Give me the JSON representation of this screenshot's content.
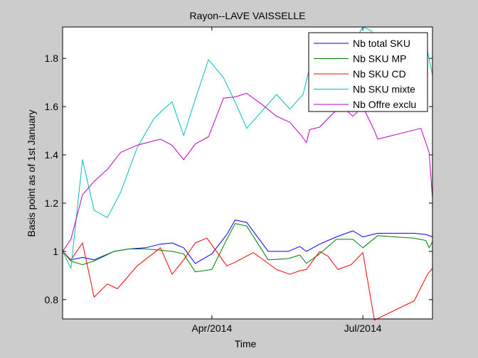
{
  "chart_data": {
    "type": "line",
    "title": "Rayon--LAVE VAISSELLE",
    "xlabel": "Time",
    "ylabel": "Basis point as of 1st January",
    "x_range": [
      "2014-01-01",
      "2014-08-12"
    ],
    "ylim": [
      0.72,
      1.93
    ],
    "y_ticks": [
      0.8,
      1,
      1.2,
      1.4,
      1.6,
      1.8
    ],
    "y_tick_labels": [
      "0.8",
      "1",
      "1.2",
      "1.4",
      "1.6",
      "1.8"
    ],
    "x_ticks": [
      "2014-04-01",
      "2014-07-01"
    ],
    "x_tick_labels": [
      "Apr/2014",
      "Jul/2014"
    ],
    "grid": false,
    "legend_placement": "top-right",
    "series": [
      {
        "name": "Nb total SKU",
        "color": "#0000ff",
        "points": [
          [
            "2014-01-01",
            1.0
          ],
          [
            "2014-01-06",
            0.965
          ],
          [
            "2014-01-13",
            0.975
          ],
          [
            "2014-01-20",
            0.965
          ],
          [
            "2014-02-01",
            1.0
          ],
          [
            "2014-02-10",
            1.01
          ],
          [
            "2014-02-20",
            1.015
          ],
          [
            "2014-03-01",
            1.03
          ],
          [
            "2014-03-08",
            1.035
          ],
          [
            "2014-03-15",
            1.015
          ],
          [
            "2014-03-22",
            0.95
          ],
          [
            "2014-04-01",
            0.99
          ],
          [
            "2014-04-10",
            1.07
          ],
          [
            "2014-04-15",
            1.13
          ],
          [
            "2014-04-22",
            1.12
          ],
          [
            "2014-05-05",
            1.0
          ],
          [
            "2014-05-17",
            1.0
          ],
          [
            "2014-05-24",
            1.02
          ],
          [
            "2014-05-28",
            1.0
          ],
          [
            "2014-06-05",
            1.03
          ],
          [
            "2014-06-15",
            1.06
          ],
          [
            "2014-06-25",
            1.085
          ],
          [
            "2014-07-01",
            1.06
          ],
          [
            "2014-07-10",
            1.075
          ],
          [
            "2014-07-20",
            1.075
          ],
          [
            "2014-08-01",
            1.075
          ],
          [
            "2014-08-08",
            1.07
          ],
          [
            "2014-08-12",
            1.06
          ]
        ]
      },
      {
        "name": "Nb SKU MP",
        "color": "#008000",
        "points": [
          [
            "2014-01-01",
            1.0
          ],
          [
            "2014-01-06",
            0.96
          ],
          [
            "2014-01-13",
            0.945
          ],
          [
            "2014-01-20",
            0.96
          ],
          [
            "2014-02-01",
            1.0
          ],
          [
            "2014-02-10",
            1.01
          ],
          [
            "2014-02-20",
            1.01
          ],
          [
            "2014-03-01",
            1.005
          ],
          [
            "2014-03-08",
            1.0
          ],
          [
            "2014-03-15",
            0.99
          ],
          [
            "2014-03-22",
            0.915
          ],
          [
            "2014-04-01",
            0.925
          ],
          [
            "2014-04-10",
            1.05
          ],
          [
            "2014-04-15",
            1.115
          ],
          [
            "2014-04-22",
            1.105
          ],
          [
            "2014-05-05",
            0.965
          ],
          [
            "2014-05-17",
            0.97
          ],
          [
            "2014-05-24",
            0.985
          ],
          [
            "2014-05-28",
            0.95
          ],
          [
            "2014-06-05",
            0.99
          ],
          [
            "2014-06-15",
            1.05
          ],
          [
            "2014-06-25",
            1.05
          ],
          [
            "2014-07-01",
            1.015
          ],
          [
            "2014-07-10",
            1.065
          ],
          [
            "2014-07-20",
            1.06
          ],
          [
            "2014-08-01",
            1.055
          ],
          [
            "2014-08-08",
            1.045
          ],
          [
            "2014-08-10",
            1.015
          ],
          [
            "2014-08-12",
            1.04
          ]
        ]
      },
      {
        "name": "Nb SKU CD",
        "color": "#ff0000",
        "points": [
          [
            "2014-01-01",
            1.0
          ],
          [
            "2014-01-06",
            0.965
          ],
          [
            "2014-01-13",
            1.035
          ],
          [
            "2014-01-20",
            0.81
          ],
          [
            "2014-01-28",
            0.865
          ],
          [
            "2014-02-03",
            0.845
          ],
          [
            "2014-02-15",
            0.94
          ],
          [
            "2014-03-01",
            1.015
          ],
          [
            "2014-03-08",
            0.905
          ],
          [
            "2014-03-15",
            0.965
          ],
          [
            "2014-03-22",
            1.035
          ],
          [
            "2014-03-29",
            1.055
          ],
          [
            "2014-04-10",
            0.94
          ],
          [
            "2014-04-15",
            0.955
          ],
          [
            "2014-04-26",
            0.995
          ],
          [
            "2014-05-10",
            0.925
          ],
          [
            "2014-05-18",
            0.905
          ],
          [
            "2014-05-24",
            0.92
          ],
          [
            "2014-05-28",
            0.925
          ],
          [
            "2014-06-05",
            1.0
          ],
          [
            "2014-06-10",
            0.98
          ],
          [
            "2014-06-16",
            0.925
          ],
          [
            "2014-06-24",
            0.945
          ],
          [
            "2014-07-01",
            0.995
          ],
          [
            "2014-07-08",
            0.715
          ],
          [
            "2014-08-01",
            0.795
          ],
          [
            "2014-08-09",
            0.905
          ],
          [
            "2014-08-12",
            0.93
          ]
        ]
      },
      {
        "name": "Nb SKU mixte",
        "color": "#00bfbf",
        "points": [
          [
            "2014-01-01",
            1.0
          ],
          [
            "2014-01-06",
            0.93
          ],
          [
            "2014-01-13",
            1.38
          ],
          [
            "2014-01-20",
            1.17
          ],
          [
            "2014-01-28",
            1.14
          ],
          [
            "2014-02-05",
            1.245
          ],
          [
            "2014-02-15",
            1.43
          ],
          [
            "2014-02-25",
            1.55
          ],
          [
            "2014-03-03",
            1.59
          ],
          [
            "2014-03-08",
            1.62
          ],
          [
            "2014-03-15",
            1.48
          ],
          [
            "2014-03-22",
            1.63
          ],
          [
            "2014-03-30",
            1.795
          ],
          [
            "2014-04-08",
            1.72
          ],
          [
            "2014-04-15",
            1.62
          ],
          [
            "2014-04-22",
            1.51
          ],
          [
            "2014-05-01",
            1.58
          ],
          [
            "2014-05-10",
            1.65
          ],
          [
            "2014-05-18",
            1.59
          ],
          [
            "2014-05-26",
            1.65
          ],
          [
            "2014-06-01",
            1.82
          ],
          [
            "2014-06-08",
            1.9
          ],
          [
            "2014-06-14",
            1.7
          ],
          [
            "2014-06-20",
            1.8
          ],
          [
            "2014-07-01",
            1.93
          ],
          [
            "2014-07-06",
            1.915
          ],
          [
            "2014-07-12",
            1.85
          ],
          [
            "2014-08-09",
            1.83
          ],
          [
            "2014-08-12",
            1.73
          ]
        ]
      },
      {
        "name": "Nb Offre exclu",
        "color": "#bf00bf",
        "points": [
          [
            "2014-01-01",
            1.0
          ],
          [
            "2014-01-06",
            1.05
          ],
          [
            "2014-01-13",
            1.235
          ],
          [
            "2014-01-20",
            1.29
          ],
          [
            "2014-01-28",
            1.34
          ],
          [
            "2014-02-05",
            1.41
          ],
          [
            "2014-02-15",
            1.44
          ],
          [
            "2014-03-01",
            1.465
          ],
          [
            "2014-03-08",
            1.44
          ],
          [
            "2014-03-15",
            1.38
          ],
          [
            "2014-03-22",
            1.445
          ],
          [
            "2014-03-30",
            1.475
          ],
          [
            "2014-04-08",
            1.635
          ],
          [
            "2014-04-15",
            1.64
          ],
          [
            "2014-04-22",
            1.655
          ],
          [
            "2014-05-01",
            1.61
          ],
          [
            "2014-05-10",
            1.56
          ],
          [
            "2014-05-18",
            1.535
          ],
          [
            "2014-05-25",
            1.48
          ],
          [
            "2014-05-28",
            1.45
          ],
          [
            "2014-05-30",
            1.505
          ],
          [
            "2014-06-05",
            1.515
          ],
          [
            "2014-06-12",
            1.565
          ],
          [
            "2014-06-18",
            1.605
          ],
          [
            "2014-06-25",
            1.56
          ],
          [
            "2014-07-01",
            1.6
          ],
          [
            "2014-07-08",
            1.5
          ],
          [
            "2014-07-10",
            1.465
          ],
          [
            "2014-08-05",
            1.51
          ],
          [
            "2014-08-10",
            1.41
          ],
          [
            "2014-08-12",
            1.22
          ]
        ]
      }
    ]
  }
}
